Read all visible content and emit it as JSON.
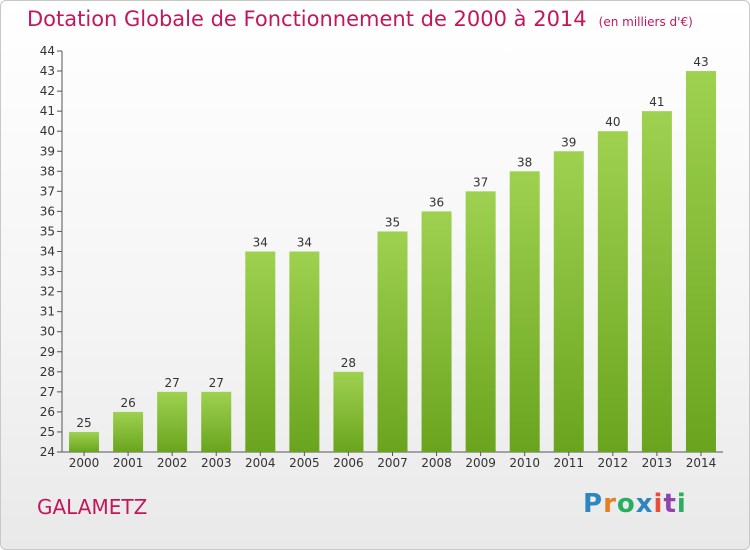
{
  "header": {
    "title": "Dotation Globale de Fonctionnement de 2000 à 2014",
    "unit": "(en milliers d'€)"
  },
  "footer": {
    "commune": "GALAMETZ",
    "logo": [
      "P",
      "r",
      "o",
      "x",
      "i",
      "t",
      "i"
    ],
    "logo_colors": [
      "#2e86c1",
      "#e67e22",
      "#27ae60",
      "#2e86c1",
      "#e74c3c",
      "#8e44ad",
      "#27ae60"
    ]
  },
  "chart_data": {
    "type": "bar",
    "title": "Dotation Globale de Fonctionnement de 2000 à 2014",
    "categories": [
      "2000",
      "2001",
      "2002",
      "2003",
      "2004",
      "2005",
      "2006",
      "2007",
      "2008",
      "2009",
      "2010",
      "2011",
      "2012",
      "2013",
      "2014"
    ],
    "values": [
      25,
      26,
      27,
      27,
      34,
      34,
      28,
      35,
      36,
      37,
      38,
      39,
      40,
      41,
      43
    ],
    "labels": [
      "25",
      "26",
      "27",
      "27",
      "34",
      "34",
      "28",
      "35",
      "36",
      "37",
      "38",
      "39",
      "40",
      "41",
      "43"
    ],
    "yticks": [
      "24",
      "25",
      "26",
      "27",
      "28",
      "29",
      "30",
      "31",
      "32",
      "33",
      "34",
      "35",
      "36",
      "37",
      "38",
      "39",
      "40",
      "41",
      "42",
      "43",
      "44"
    ],
    "ylim": [
      24,
      44
    ],
    "grid": false,
    "bar_color": "#8cc63f"
  }
}
